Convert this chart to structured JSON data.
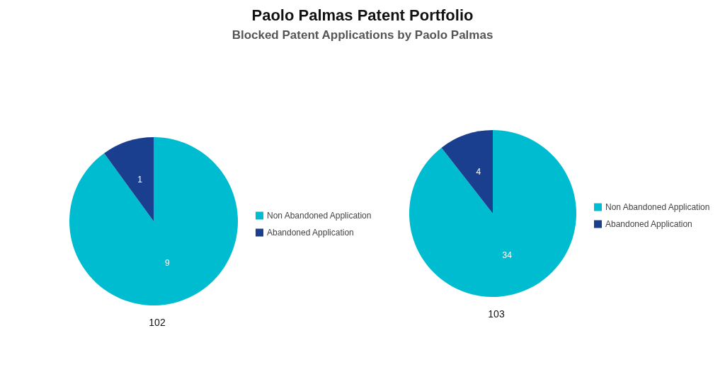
{
  "chart_data": [
    {
      "type": "pie",
      "title": "Paolo Palmas Patent Portfolio",
      "subtitle": "Blocked Patent Applications by Paolo Palmas",
      "xlabel": "102",
      "categories": [
        "Non Abandoned Application",
        "Abandoned Application"
      ],
      "values": [
        9,
        1
      ],
      "colors": [
        "#00bcd0",
        "#1a3f8f"
      ],
      "data_labels": true,
      "legend": "right"
    },
    {
      "type": "pie",
      "xlabel": "103",
      "categories": [
        "Non Abandoned Application",
        "Abandoned Application"
      ],
      "values": [
        34,
        4
      ],
      "colors": [
        "#00bcd0",
        "#1a3f8f"
      ],
      "data_labels": true,
      "legend": "right"
    }
  ]
}
